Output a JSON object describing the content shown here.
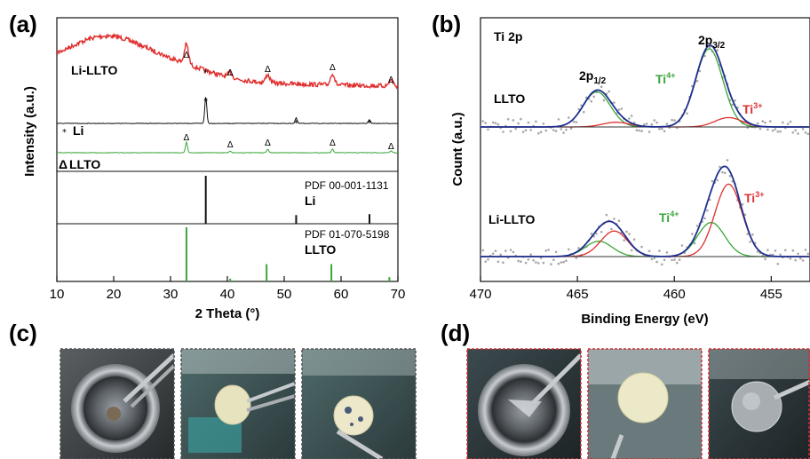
{
  "panels": {
    "a": "(a)",
    "b": "(b)",
    "c": "(c)",
    "d": "(d)"
  },
  "colors": {
    "red": "#e03030",
    "green": "#3aa63a",
    "black": "#111111",
    "blue": "#1f2f8f",
    "grey": "#9a9a9a"
  },
  "chart_data": [
    {
      "type": "line",
      "panel": "a",
      "xlabel": "2 Theta (°)",
      "ylabel": "Intensity (a.u.)",
      "xlim": [
        10,
        70
      ],
      "xticks": [
        10,
        20,
        30,
        40,
        50,
        60,
        70
      ],
      "series": [
        {
          "name": "Li-LLTO",
          "color": "#e03030",
          "peaks_2theta": [
            32.8,
            40.5,
            47.1,
            58.5,
            68.8
          ],
          "amorphous_hump_center": 19
        },
        {
          "name": "Li",
          "color": "#111111",
          "peaks_2theta": [
            36.2,
            52.1,
            65.0
          ]
        },
        {
          "name": "LLTO",
          "color": "#3aa63a",
          "peaks_2theta": [
            32.8,
            40.5,
            47.1,
            58.5,
            68.8
          ]
        }
      ],
      "references": [
        {
          "pdf": "PDF 00-001-1131",
          "phase": "Li",
          "color": "#111111",
          "lines": [
            [
              36.2,
              1.0
            ],
            [
              52.1,
              0.18
            ],
            [
              65.0,
              0.2
            ]
          ]
        },
        {
          "pdf": "PDF 01-070-5198",
          "phase": "LLTO",
          "color": "#3aa63a",
          "lines": [
            [
              32.8,
              1.0
            ],
            [
              40.5,
              0.05
            ],
            [
              46.9,
              0.32
            ],
            [
              58.3,
              0.32
            ],
            [
              68.5,
              0.08
            ]
          ]
        }
      ],
      "annotations": {
        "li_lltO_label": "Li-LLTO",
        "li_marker": "*",
        "li_label": "Li",
        "lltO_marker": "Δ",
        "lltO_label": "LLTO",
        "triangle": "Δ",
        "star": "*"
      }
    },
    {
      "type": "line",
      "panel": "b",
      "title": "Ti 2p",
      "xlabel": "Binding Energy (eV)",
      "ylabel": "Count (a.u.)",
      "xlim": [
        470,
        453
      ],
      "xticks": [
        470,
        465,
        460,
        455
      ],
      "spectra": [
        {
          "name": "LLTO",
          "components": [
            {
              "label": "Ti4+",
              "color": "#3aa63a",
              "peaks": [
                [
                  458.2,
                  1.0
                ],
                [
                  464.0,
                  0.45
                ]
              ]
            },
            {
              "label": "Ti3+",
              "color": "#e03030",
              "peaks": [
                [
                  457.2,
                  0.12
                ],
                [
                  463.0,
                  0.06
                ]
              ]
            }
          ]
        },
        {
          "name": "Li-LLTO",
          "components": [
            {
              "label": "Ti4+",
              "color": "#3aa63a",
              "peaks": [
                [
                  458.1,
                  0.4
                ],
                [
                  463.9,
                  0.18
                ]
              ]
            },
            {
              "label": "Ti3+",
              "color": "#e03030",
              "peaks": [
                [
                  457.2,
                  0.85
                ],
                [
                  463.1,
                  0.3
                ]
              ]
            }
          ]
        }
      ],
      "peak_labels": {
        "p12": "2p",
        "p12_sub": "1/2",
        "p32": "2p",
        "p32_sub": "3/2",
        "ti4": "Ti",
        "ti4_sup": "4+",
        "ti3": "Ti",
        "ti3_sup": "3+"
      }
    }
  ]
}
